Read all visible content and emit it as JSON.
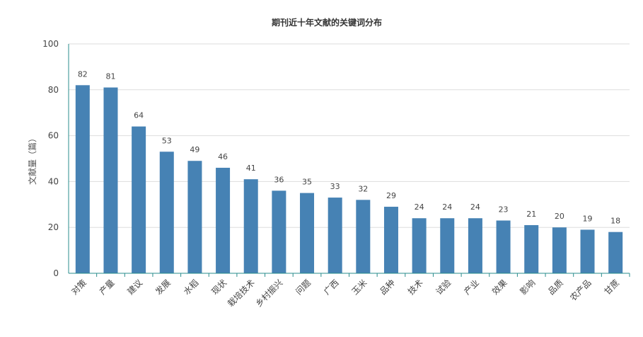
{
  "chart_data": {
    "type": "bar",
    "title": "期刊近十年文献的关键词分布",
    "xlabel": "",
    "ylabel": "文献量（篇）",
    "ylim": [
      0,
      100
    ],
    "yticks": [
      0,
      20,
      40,
      60,
      80,
      100
    ],
    "grid": true,
    "categories": [
      "对策",
      "产量",
      "建议",
      "发展",
      "水稻",
      "现状",
      "栽培技术",
      "乡村振兴",
      "问题",
      "广西",
      "玉米",
      "品种",
      "技术",
      "试验",
      "产业",
      "效果",
      "影响",
      "品质",
      "农产品",
      "甘蔗"
    ],
    "values": [
      82,
      81,
      64,
      53,
      49,
      46,
      41,
      36,
      35,
      33,
      32,
      29,
      24,
      24,
      24,
      23,
      21,
      20,
      19,
      18
    ],
    "data_labels": true,
    "colors": {
      "bar": "#4682b4",
      "axis": "#2a8c8c",
      "grid": "#dddddd"
    }
  }
}
